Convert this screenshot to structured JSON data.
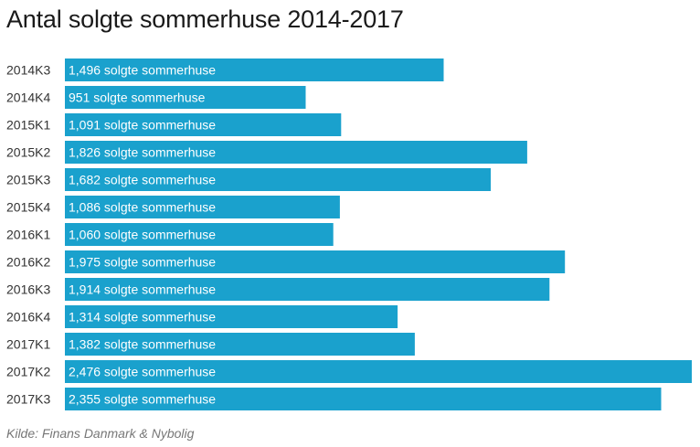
{
  "title": "Antal solgte sommerhuse 2014-2017",
  "source": "Kilde: Finans Danmark & Nybolig",
  "colors": {
    "bar": "#1aa1cd",
    "text": "#333333",
    "bar_text": "#ffffff"
  },
  "chart_data": {
    "type": "bar",
    "orientation": "horizontal",
    "title": "Antal solgte sommerhuse 2014-2017",
    "categories": [
      "2014K3",
      "2014K4",
      "2015K1",
      "2015K2",
      "2015K3",
      "2015K4",
      "2016K1",
      "2016K2",
      "2016K3",
      "2016K4",
      "2017K1",
      "2017K2",
      "2017K3"
    ],
    "values": [
      1496,
      951,
      1091,
      1826,
      1682,
      1086,
      1060,
      1975,
      1914,
      1314,
      1382,
      2476,
      2355
    ],
    "data_labels": [
      "1,496 solgte sommerhuse",
      "951 solgte sommerhuse",
      "1,091 solgte sommerhuse",
      "1,826 solgte sommerhuse",
      "1,682 solgte sommerhuse",
      "1,086 solgte sommerhuse",
      "1,060 solgte sommerhuse",
      "1,975 solgte sommerhuse",
      "1,914 solgte sommerhuse",
      "1,314 solgte sommerhuse",
      "1,382 solgte sommerhuse",
      "2,476 solgte sommerhuse",
      "2,355 solgte sommerhuse"
    ],
    "xlim": [
      0,
      2476
    ],
    "grid": false,
    "legend": "none"
  }
}
